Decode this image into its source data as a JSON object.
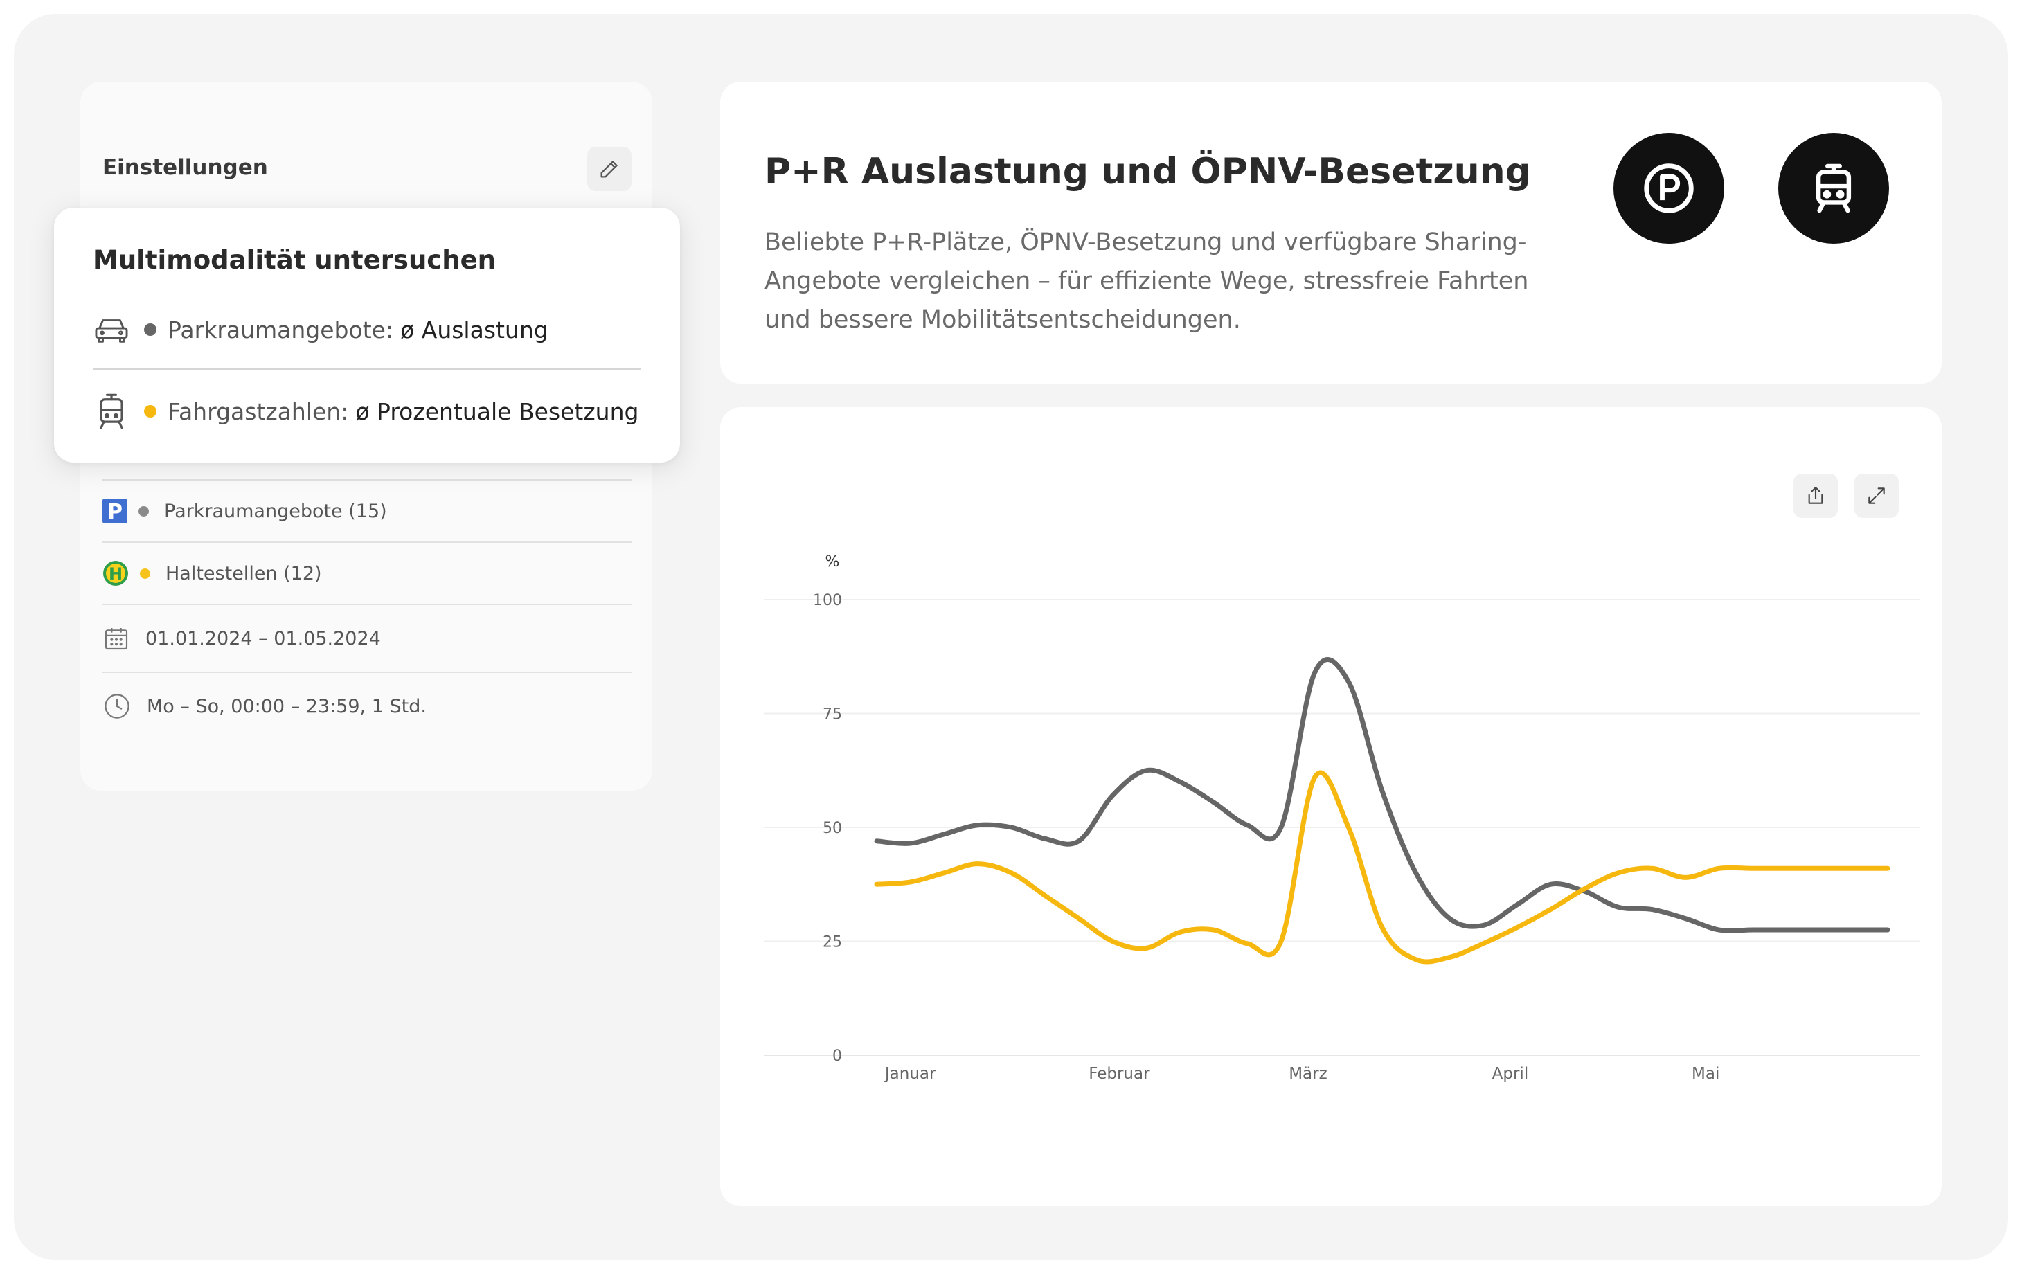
{
  "settings": {
    "title": "Einstellungen",
    "rows": [
      {
        "icon": "parking-sign-icon",
        "color": "#8a8a8a",
        "label": "Parkraumangebote (15)"
      },
      {
        "icon": "bus-stop-icon",
        "color": "#f6c21c",
        "label": "Haltestellen (12)"
      },
      {
        "icon": "calendar-icon",
        "label": "01.01.2024 – 01.05.2024"
      },
      {
        "icon": "clock-icon",
        "label": "Mo – So, 00:00 – 23:59, 1 Std."
      }
    ]
  },
  "overlay": {
    "title": "Multimodalität untersuchen",
    "items": [
      {
        "icon": "car-icon",
        "color": "#666666",
        "label": "Parkraumangebote:",
        "value": "ø Auslastung"
      },
      {
        "icon": "tram-icon",
        "color": "#f6b80f",
        "label": "Fahrgastzahlen:",
        "value": "ø Prozentuale Besetzung"
      }
    ]
  },
  "header": {
    "title": "P+R Auslastung und ÖPNV-Besetzung",
    "description": "Beliebte P+R-Plätze, ÖPNV-Besetzung und verfügbare Sharing-Angebote vergleichen – für effiziente Wege, stressfreie Fahrten und bessere Mobilitätsentscheidungen.",
    "icons": [
      "parking-circle-icon",
      "tram-circle-icon"
    ]
  },
  "chart_data": {
    "type": "line",
    "ylabel": "%",
    "ylim": [
      0,
      100
    ],
    "yticks": [
      0,
      25,
      50,
      75,
      100
    ],
    "xticks": [
      "Januar",
      "Februar",
      "März",
      "April",
      "Mai"
    ],
    "xtick_positions": [
      5,
      36,
      64,
      94,
      123
    ],
    "xlim": [
      0,
      150
    ],
    "grid": true,
    "series": [
      {
        "color": "#666666",
        "x": [
          0,
          5,
          10,
          15,
          20,
          25,
          30,
          35,
          40,
          45,
          50,
          55,
          60,
          65,
          70,
          75,
          80,
          85,
          90,
          95,
          100,
          105,
          110,
          115,
          120,
          125,
          130,
          135,
          140,
          145,
          150
        ],
        "y": [
          47,
          46.5,
          48.5,
          50.5,
          50,
          47.5,
          47,
          57,
          62.5,
          60,
          55.5,
          50.5,
          50,
          84,
          82,
          58,
          40,
          30,
          28.5,
          33,
          37.5,
          36,
          32.5,
          32,
          30,
          27.5,
          27.5,
          27.5,
          27.5,
          27.5,
          27.5
        ]
      },
      {
        "color": "#f6b80f",
        "x": [
          0,
          5,
          10,
          15,
          20,
          25,
          30,
          35,
          40,
          45,
          50,
          55,
          60,
          65,
          70,
          75,
          80,
          85,
          90,
          95,
          100,
          105,
          110,
          115,
          120,
          125,
          130,
          135,
          140,
          145,
          150
        ],
        "y": [
          37.5,
          38,
          40,
          42,
          40,
          35,
          30,
          25,
          23.5,
          27,
          27.5,
          24.5,
          25,
          61,
          50,
          28,
          21,
          21.5,
          24.5,
          28,
          32,
          36.5,
          40,
          41,
          39,
          41,
          41,
          41,
          41,
          41,
          41
        ]
      }
    ]
  },
  "chart_toolbar": {
    "icons": [
      "share-icon",
      "expand-icon"
    ]
  }
}
